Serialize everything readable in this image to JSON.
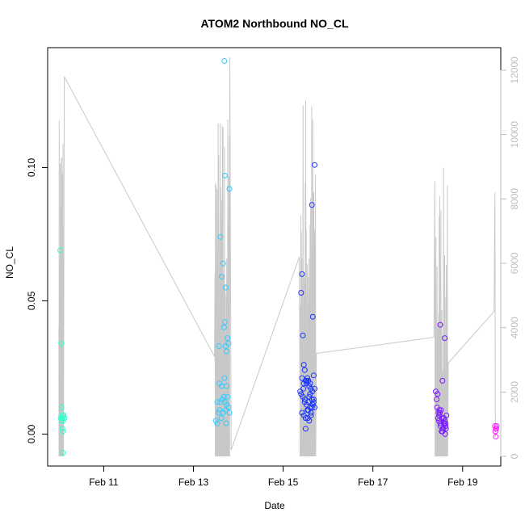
{
  "chart_data": {
    "type": "scatter",
    "title": "ATOM2 Northbound NO_CL",
    "xlabel": "Date",
    "ylabel": "NO_CL",
    "x_ticks": [
      "Feb 11",
      "Feb 13",
      "Feb 15",
      "Feb 17",
      "Feb 19"
    ],
    "x_tick_days": [
      11,
      13,
      15,
      17,
      19
    ],
    "xlim_days": [
      9.75,
      19.85
    ],
    "y_left": {
      "lim": [
        -0.012,
        0.145
      ],
      "ticks": [
        0.0,
        0.05,
        0.1
      ],
      "tick_labels": [
        "0.00",
        "0.05",
        "0.10"
      ]
    },
    "y_right": {
      "lim": [
        -300,
        12700
      ],
      "ticks": [
        0,
        2000,
        4000,
        6000,
        8000,
        10000,
        12000
      ],
      "tick_labels": [
        "0",
        "2000",
        "4000",
        "6000",
        "8000",
        "10000",
        "12000"
      ],
      "color": "#bdbdbd"
    },
    "grid": false,
    "line_color": "#c8c8c8",
    "series": [
      {
        "color": "#33ffcc",
        "x": [
          10.03,
          10.05,
          10.06,
          10.07,
          10.08,
          10.09,
          10.1,
          10.04,
          10.06,
          10.08,
          10.09,
          10.11,
          10.12,
          10.09
        ],
        "y": [
          0.069,
          0.034,
          0.01,
          0.007,
          0.006,
          0.005,
          0.007,
          0.006,
          0.005,
          0.002,
          0.001,
          0.007,
          0.006,
          -0.007
        ]
      },
      {
        "color": "#33ccff",
        "x": [
          13.5,
          13.53,
          13.56,
          13.58,
          13.6,
          13.62,
          13.64,
          13.66,
          13.68,
          13.7,
          13.72,
          13.74,
          13.76,
          13.78,
          13.8,
          13.53,
          13.57,
          13.6,
          13.63,
          13.66,
          13.68,
          13.7,
          13.72,
          13.74,
          13.76,
          13.78,
          13.8,
          13.58,
          13.63,
          13.69,
          13.74,
          13.7,
          13.72,
          13.69,
          13.73
        ],
        "y": [
          0.005,
          0.004,
          0.008,
          0.009,
          0.012,
          0.006,
          0.013,
          0.008,
          0.014,
          0.012,
          0.009,
          0.011,
          0.014,
          0.01,
          0.008,
          0.012,
          0.033,
          0.074,
          0.059,
          0.064,
          0.04,
          0.042,
          0.055,
          0.031,
          0.036,
          0.034,
          0.092,
          0.019,
          0.018,
          0.021,
          0.018,
          0.097,
          0.033,
          0.14,
          0.004
        ]
      },
      {
        "color": "#1a33ff",
        "x": [
          15.38,
          15.4,
          15.42,
          15.44,
          15.46,
          15.48,
          15.5,
          15.52,
          15.54,
          15.56,
          15.58,
          15.6,
          15.62,
          15.64,
          15.66,
          15.68,
          15.7,
          15.4,
          15.44,
          15.48,
          15.52,
          15.56,
          15.6,
          15.64,
          15.68,
          15.42,
          15.46,
          15.5,
          15.54,
          15.58,
          15.62,
          15.66,
          15.7,
          15.45,
          15.5,
          15.55,
          15.6,
          15.65,
          15.7,
          15.42,
          15.46,
          15.52,
          15.58,
          15.64,
          15.48,
          15.56,
          15.62,
          15.68
        ],
        "y": [
          0.016,
          0.053,
          0.06,
          0.037,
          0.026,
          0.024,
          0.02,
          0.019,
          0.021,
          0.02,
          0.018,
          0.019,
          0.017,
          0.086,
          0.044,
          0.022,
          0.101,
          0.015,
          0.014,
          0.013,
          0.011,
          0.012,
          0.01,
          0.013,
          0.012,
          0.008,
          0.007,
          0.006,
          0.009,
          0.005,
          0.007,
          0.011,
          0.01,
          0.017,
          0.002,
          0.006,
          0.015,
          0.016,
          0.017,
          0.021,
          0.019,
          0.02,
          0.014,
          0.01,
          0.012,
          0.009,
          0.008,
          0.013
        ]
      },
      {
        "color": "#7a1aff",
        "x": [
          18.4,
          18.42,
          18.44,
          18.46,
          18.48,
          18.5,
          18.52,
          18.54,
          18.56,
          18.58,
          18.6,
          18.62,
          18.64,
          18.43,
          18.47,
          18.51,
          18.55,
          18.59,
          18.63,
          18.45,
          18.49,
          18.53,
          18.57,
          18.61,
          18.5,
          18.55,
          18.6,
          18.48,
          18.58,
          18.62
        ],
        "y": [
          0.016,
          0.013,
          0.015,
          0.008,
          0.007,
          0.004,
          0.009,
          0.006,
          0.002,
          0.004,
          0.005,
          0.003,
          0.007,
          0.01,
          0.005,
          0.003,
          0.001,
          0.004,
          0.002,
          0.006,
          0.008,
          0.001,
          0.002,
          0.0,
          0.041,
          0.02,
          0.036,
          0.009,
          0.006,
          0.004
        ]
      },
      {
        "color": "#ff1aff",
        "x": [
          19.72,
          19.74,
          19.76,
          19.73,
          19.75,
          19.74
        ],
        "y": [
          0.003,
          0.002,
          0.003,
          0.001,
          0.002,
          -0.001
        ]
      }
    ]
  }
}
